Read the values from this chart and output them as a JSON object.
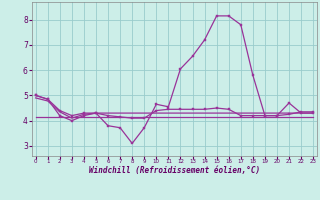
{
  "title": "",
  "xlabel": "Windchill (Refroidissement éolien,°C)",
  "background_color": "#cceee8",
  "grid_color": "#99cccc",
  "line_color": "#993399",
  "x_ticks": [
    0,
    1,
    2,
    3,
    4,
    5,
    6,
    7,
    8,
    9,
    10,
    11,
    12,
    13,
    14,
    15,
    16,
    17,
    18,
    19,
    20,
    21,
    22,
    23
  ],
  "y_ticks": [
    3,
    4,
    5,
    6,
    7,
    8
  ],
  "ylim": [
    2.6,
    8.7
  ],
  "xlim": [
    -0.3,
    23.3
  ],
  "series1_x": [
    0,
    1,
    2,
    3,
    4,
    5,
    6,
    7,
    8,
    9,
    10,
    11,
    12,
    13,
    14,
    15,
    16,
    17,
    18,
    19,
    20,
    21,
    22,
    23
  ],
  "series1_y": [
    5.0,
    4.85,
    4.2,
    4.0,
    4.2,
    4.3,
    3.8,
    3.72,
    3.1,
    3.72,
    4.65,
    4.55,
    6.05,
    6.55,
    7.2,
    8.15,
    8.15,
    7.8,
    5.8,
    4.2,
    4.2,
    4.7,
    4.3,
    4.3
  ],
  "series2_x": [
    0,
    1,
    2,
    3,
    4,
    5,
    6,
    7,
    8,
    9,
    10,
    11,
    12,
    13,
    14,
    15,
    16,
    17,
    18,
    19,
    20,
    21,
    22,
    23
  ],
  "series2_y": [
    5.0,
    4.85,
    4.4,
    4.2,
    4.3,
    4.3,
    4.2,
    4.15,
    4.1,
    4.1,
    4.4,
    4.45,
    4.45,
    4.45,
    4.45,
    4.5,
    4.45,
    4.2,
    4.2,
    4.2,
    4.2,
    4.25,
    4.35,
    4.35
  ],
  "series3_x": [
    0,
    23
  ],
  "series3_y": [
    4.15,
    4.15
  ],
  "series4_x": [
    0,
    1,
    2,
    3,
    4,
    5,
    23
  ],
  "series4_y": [
    4.9,
    4.78,
    4.35,
    4.1,
    4.25,
    4.3,
    4.3
  ]
}
